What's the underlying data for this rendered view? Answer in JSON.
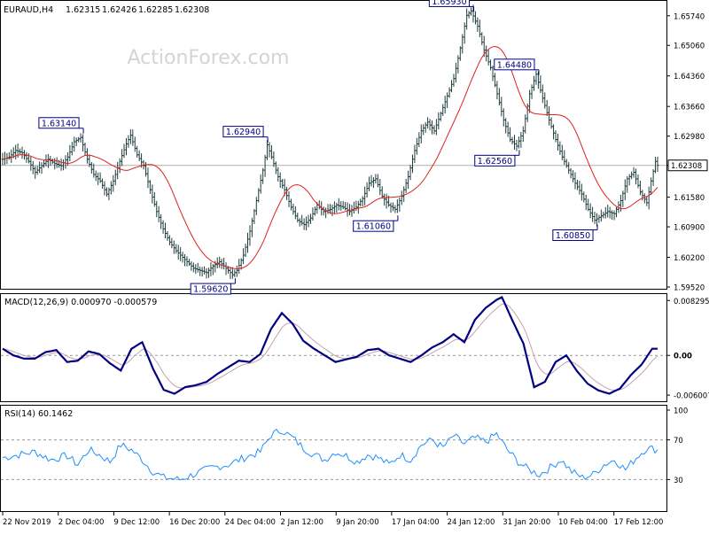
{
  "chart_data": [
    {
      "type": "line",
      "subtype": "ohlc-bar",
      "symbol_label": "EURAUD,H4",
      "ohlc_header": [
        "1.62315",
        "1.62426",
        "1.62285",
        "1.62308"
      ],
      "watermark": "ActionForex.com",
      "ylim": [
        1.5952,
        1.6604
      ],
      "y_ticks": [
        "1.65740",
        "1.65060",
        "1.64360",
        "1.63660",
        "1.62980",
        "1.62308",
        "1.61580",
        "1.60900",
        "1.60200",
        "1.59520"
      ],
      "last_price": 1.62308,
      "last_price_label": "1.62308",
      "x_ticks": [
        "22 Nov 2019",
        "2 Dec 04:00",
        "9 Dec 12:00",
        "16 Dec 20:00",
        "24 Dec 04:00",
        "2 Jan 12:00",
        "9 Jan 20:00",
        "17 Jan 04:00",
        "24 Jan 12:00",
        "31 Jan 20:00",
        "10 Feb 04:00",
        "17 Feb 12:00"
      ],
      "anchors": [
        [
          0,
          1.6245
        ],
        [
          3,
          1.625
        ],
        [
          6,
          1.6265
        ],
        [
          9,
          1.626
        ],
        [
          12,
          1.624
        ],
        [
          15,
          1.6215
        ],
        [
          18,
          1.623
        ],
        [
          21,
          1.6245
        ],
        [
          24,
          1.6235
        ],
        [
          27,
          1.623
        ],
        [
          30,
          1.625
        ],
        [
          33,
          1.6285
        ],
        [
          36,
          1.6295
        ],
        [
          39,
          1.6245
        ],
        [
          42,
          1.621
        ],
        [
          45,
          1.6195
        ],
        [
          48,
          1.6165
        ],
        [
          51,
          1.6195
        ],
        [
          54,
          1.624
        ],
        [
          57,
          1.628
        ],
        [
          59,
          1.63
        ],
        [
          62,
          1.6255
        ],
        [
          65,
          1.623
        ],
        [
          68,
          1.6175
        ],
        [
          71,
          1.6125
        ],
        [
          74,
          1.6085
        ],
        [
          77,
          1.6055
        ],
        [
          80,
          1.6035
        ],
        [
          83,
          1.602
        ],
        [
          86,
          1.6005
        ],
        [
          88,
          1.5995
        ],
        [
          91,
          1.599
        ],
        [
          94,
          1.5985
        ],
        [
          97,
          1.6
        ],
        [
          100,
          1.601
        ],
        [
          103,
          1.5995
        ],
        [
          106,
          1.598
        ],
        [
          108,
          1.599
        ],
        [
          111,
          1.6025
        ],
        [
          114,
          1.608
        ],
        [
          117,
          1.615
        ],
        [
          120,
          1.622
        ],
        [
          122,
          1.6278
        ],
        [
          124,
          1.625
        ],
        [
          127,
          1.6205
        ],
        [
          130,
          1.6175
        ],
        [
          133,
          1.6135
        ],
        [
          136,
          1.6105
        ],
        [
          139,
          1.6095
        ],
        [
          142,
          1.611
        ],
        [
          145,
          1.614
        ],
        [
          148,
          1.6125
        ],
        [
          151,
          1.613
        ],
        [
          154,
          1.614
        ],
        [
          157,
          1.6135
        ],
        [
          160,
          1.6125
        ],
        [
          163,
          1.6135
        ],
        [
          166,
          1.6155
        ],
        [
          169,
          1.619
        ],
        [
          172,
          1.62
        ],
        [
          175,
          1.616
        ],
        [
          178,
          1.614
        ],
        [
          181,
          1.613
        ],
        [
          184,
          1.616
        ],
        [
          187,
          1.6205
        ],
        [
          190,
          1.6265
        ],
        [
          193,
          1.631
        ],
        [
          196,
          1.633
        ],
        [
          199,
          1.631
        ],
        [
          202,
          1.635
        ],
        [
          205,
          1.639
        ],
        [
          208,
          1.643
        ],
        [
          211,
          1.65
        ],
        [
          214,
          1.6575
        ],
        [
          216,
          1.6585
        ],
        [
          219,
          1.655
        ],
        [
          222,
          1.6495
        ],
        [
          225,
          1.6455
        ],
        [
          228,
          1.6395
        ],
        [
          231,
          1.6335
        ],
        [
          234,
          1.629
        ],
        [
          237,
          1.6275
        ],
        [
          240,
          1.631
        ],
        [
          243,
          1.6395
        ],
        [
          246,
          1.644
        ],
        [
          249,
          1.6385
        ],
        [
          252,
          1.6335
        ],
        [
          255,
          1.629
        ],
        [
          258,
          1.625
        ],
        [
          261,
          1.622
        ],
        [
          264,
          1.619
        ],
        [
          267,
          1.6165
        ],
        [
          270,
          1.613
        ],
        [
          273,
          1.6105
        ],
        [
          276,
          1.6115
        ],
        [
          279,
          1.6125
        ],
        [
          282,
          1.612
        ],
        [
          285,
          1.615
        ],
        [
          288,
          1.62
        ],
        [
          291,
          1.6215
        ],
        [
          294,
          1.617
        ],
        [
          297,
          1.6145
        ],
        [
          299,
          1.6195
        ],
        [
          301,
          1.624
        ],
        [
          302,
          1.6231
        ]
      ],
      "series": [
        {
          "name": "",
          "kind": "price",
          "color": "#1f3d3d"
        },
        {
          "name": "",
          "kind": "moving-average",
          "color": "#e0201e"
        }
      ],
      "annotations": [
        {
          "label": "1.63140",
          "bar": 36,
          "price": 1.6314,
          "side": "top"
        },
        {
          "label": "1.62940",
          "bar": 121,
          "price": 1.6294,
          "side": "top"
        },
        {
          "label": "1.59620",
          "bar": 106,
          "price": 1.5962,
          "side": "bottom"
        },
        {
          "label": "1.65930",
          "bar": 216,
          "price": 1.6593,
          "side": "top"
        },
        {
          "label": "1.64480",
          "bar": 246,
          "price": 1.6448,
          "side": "top"
        },
        {
          "label": "1.62560",
          "bar": 237,
          "price": 1.6256,
          "side": "bottom"
        },
        {
          "label": "1.61060",
          "bar": 181,
          "price": 1.6106,
          "side": "bottom"
        },
        {
          "label": "1.60850",
          "bar": 273,
          "price": 1.6085,
          "side": "bottom"
        }
      ]
    },
    {
      "type": "line",
      "title": "MACD(12,26,9) 0.000970 -0.000579",
      "ylim": [
        -0.0068,
        0.009
      ],
      "y_ticks": [
        "0.008295",
        "0.00",
        "-0.006007"
      ],
      "zero_label": "0.00",
      "series": [
        {
          "name": "",
          "color": "#000080"
        },
        {
          "name": "",
          "color": "#c8a0b0"
        }
      ],
      "anchors": [
        [
          0,
          0.001
        ],
        [
          4,
          0.0
        ],
        [
          8,
          -0.0005
        ],
        [
          12,
          -0.0005
        ],
        [
          16,
          0.0005
        ],
        [
          20,
          0.0008
        ],
        [
          24,
          -0.001
        ],
        [
          28,
          -0.0008
        ],
        [
          32,
          0.0006
        ],
        [
          36,
          0.0002
        ],
        [
          40,
          -0.0012
        ],
        [
          44,
          -0.0023
        ],
        [
          48,
          0.001
        ],
        [
          52,
          0.002
        ],
        [
          56,
          -0.002
        ],
        [
          60,
          -0.0052
        ],
        [
          64,
          -0.0058
        ],
        [
          68,
          -0.0048
        ],
        [
          72,
          -0.0045
        ],
        [
          76,
          -0.004
        ],
        [
          80,
          -0.0028
        ],
        [
          84,
          -0.0018
        ],
        [
          88,
          -0.0008
        ],
        [
          92,
          -0.001
        ],
        [
          96,
          0.0002
        ],
        [
          100,
          0.004
        ],
        [
          104,
          0.0064
        ],
        [
          108,
          0.0048
        ],
        [
          112,
          0.0022
        ],
        [
          116,
          0.001
        ],
        [
          120,
          0.0
        ],
        [
          124,
          -0.001
        ],
        [
          128,
          -0.0006
        ],
        [
          132,
          -0.0002
        ],
        [
          136,
          0.0008
        ],
        [
          140,
          0.001
        ],
        [
          144,
          0.0
        ],
        [
          148,
          -0.0005
        ],
        [
          152,
          -0.001
        ],
        [
          156,
          0.0
        ],
        [
          160,
          0.0012
        ],
        [
          164,
          0.002
        ],
        [
          168,
          0.0032
        ],
        [
          172,
          0.002
        ],
        [
          176,
          0.0054
        ],
        [
          180,
          0.0072
        ],
        [
          184,
          0.0084
        ],
        [
          186,
          0.0088
        ],
        [
          190,
          0.0052
        ],
        [
          194,
          0.0018
        ],
        [
          198,
          -0.0048
        ],
        [
          202,
          -0.004
        ],
        [
          206,
          -0.001
        ],
        [
          210,
          0.0
        ],
        [
          214,
          -0.0024
        ],
        [
          218,
          -0.0043
        ],
        [
          222,
          -0.0053
        ],
        [
          226,
          -0.0058
        ],
        [
          230,
          -0.005
        ],
        [
          234,
          -0.003
        ],
        [
          238,
          -0.0014
        ],
        [
          242,
          0.001
        ],
        [
          244,
          0.001
        ]
      ]
    },
    {
      "type": "line",
      "title": "RSI(14) 60.1462",
      "ylim": [
        0,
        100
      ],
      "y_ticks": [
        "100",
        "70",
        "30"
      ],
      "levels": [
        70,
        30
      ],
      "series": [
        {
          "name": "",
          "color": "#1e90ff"
        }
      ],
      "anchors": [
        [
          0,
          52
        ],
        [
          6,
          55
        ],
        [
          12,
          58
        ],
        [
          18,
          50
        ],
        [
          24,
          54
        ],
        [
          28,
          45
        ],
        [
          32,
          60
        ],
        [
          36,
          55
        ],
        [
          40,
          48
        ],
        [
          44,
          65
        ],
        [
          48,
          60
        ],
        [
          52,
          50
        ],
        [
          56,
          38
        ],
        [
          60,
          32
        ],
        [
          66,
          30
        ],
        [
          72,
          36
        ],
        [
          78,
          42
        ],
        [
          84,
          45
        ],
        [
          90,
          52
        ],
        [
          96,
          58
        ],
        [
          100,
          75
        ],
        [
          104,
          80
        ],
        [
          108,
          72
        ],
        [
          112,
          62
        ],
        [
          116,
          55
        ],
        [
          120,
          50
        ],
        [
          124,
          58
        ],
        [
          128,
          54
        ],
        [
          132,
          48
        ],
        [
          136,
          55
        ],
        [
          140,
          52
        ],
        [
          144,
          45
        ],
        [
          148,
          55
        ],
        [
          152,
          50
        ],
        [
          156,
          65
        ],
        [
          160,
          70
        ],
        [
          164,
          62
        ],
        [
          168,
          74
        ],
        [
          172,
          66
        ],
        [
          176,
          72
        ],
        [
          180,
          68
        ],
        [
          184,
          76
        ],
        [
          188,
          60
        ],
        [
          192,
          48
        ],
        [
          196,
          40
        ],
        [
          200,
          35
        ],
        [
          204,
          42
        ],
        [
          208,
          50
        ],
        [
          212,
          38
        ],
        [
          216,
          32
        ],
        [
          220,
          35
        ],
        [
          224,
          45
        ],
        [
          228,
          50
        ],
        [
          232,
          40
        ],
        [
          236,
          52
        ],
        [
          240,
          62
        ],
        [
          244,
          60
        ]
      ]
    }
  ]
}
